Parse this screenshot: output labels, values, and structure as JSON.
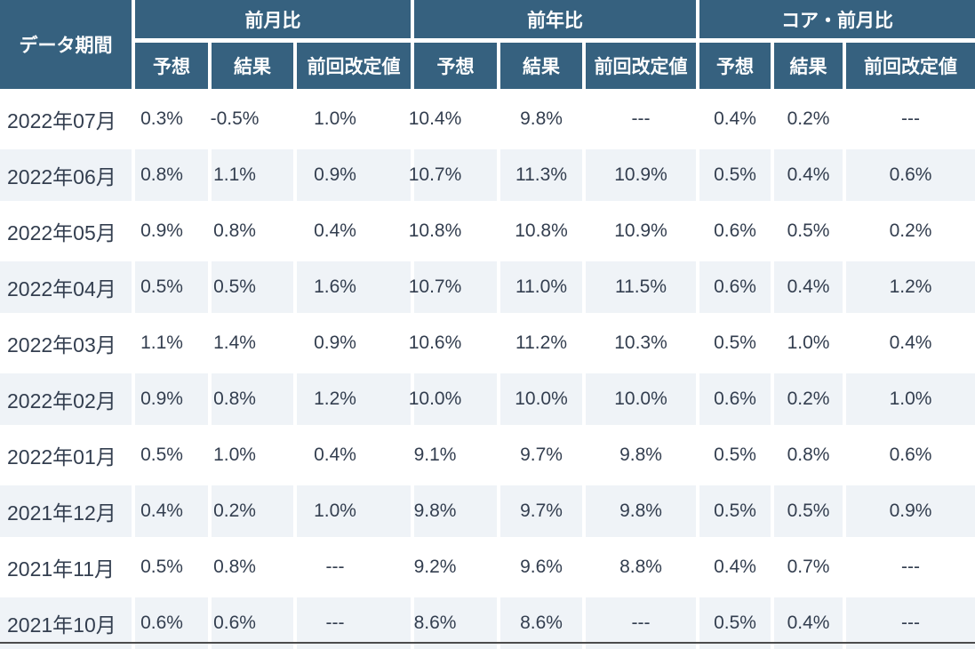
{
  "chart_data": {
    "type": "table",
    "corner_header": "データ期間",
    "column_groups": [
      {
        "label": "前月比",
        "columns": [
          "予想",
          "結果",
          "前回改定値"
        ]
      },
      {
        "label": "前年比",
        "columns": [
          "予想",
          "結果",
          "前回改定値"
        ]
      },
      {
        "label": "コア・前月比",
        "columns": [
          "予想",
          "結果",
          "前回改定値"
        ]
      }
    ],
    "no_data_placeholder": "---",
    "rows": [
      {
        "period": "2022年07月",
        "values": [
          "0.3%",
          "-0.5%",
          "1.0%",
          "10.4%",
          "9.8%",
          "---",
          "0.4%",
          "0.2%",
          "---"
        ]
      },
      {
        "period": "2022年06月",
        "values": [
          "0.8%",
          "1.1%",
          "0.9%",
          "10.7%",
          "11.3%",
          "10.9%",
          "0.5%",
          "0.4%",
          "0.6%"
        ]
      },
      {
        "period": "2022年05月",
        "values": [
          "0.9%",
          "0.8%",
          "0.4%",
          "10.8%",
          "10.8%",
          "10.9%",
          "0.6%",
          "0.5%",
          "0.2%"
        ]
      },
      {
        "period": "2022年04月",
        "values": [
          "0.5%",
          "0.5%",
          "1.6%",
          "10.7%",
          "11.0%",
          "11.5%",
          "0.6%",
          "0.4%",
          "1.2%"
        ]
      },
      {
        "period": "2022年03月",
        "values": [
          "1.1%",
          "1.4%",
          "0.9%",
          "10.6%",
          "11.2%",
          "10.3%",
          "0.5%",
          "1.0%",
          "0.4%"
        ]
      },
      {
        "period": "2022年02月",
        "values": [
          "0.9%",
          "0.8%",
          "1.2%",
          "10.0%",
          "10.0%",
          "10.0%",
          "0.6%",
          "0.2%",
          "1.0%"
        ]
      },
      {
        "period": "2022年01月",
        "values": [
          "0.5%",
          "1.0%",
          "0.4%",
          "9.1%",
          "9.7%",
          "9.8%",
          "0.5%",
          "0.8%",
          "0.6%"
        ]
      },
      {
        "period": "2021年12月",
        "values": [
          "0.4%",
          "0.2%",
          "1.0%",
          "9.8%",
          "9.7%",
          "9.8%",
          "0.5%",
          "0.5%",
          "0.9%"
        ]
      },
      {
        "period": "2021年11月",
        "values": [
          "0.5%",
          "0.8%",
          "---",
          "9.2%",
          "9.6%",
          "8.8%",
          "0.4%",
          "0.7%",
          "---"
        ]
      },
      {
        "period": "2021年10月",
        "values": [
          "0.6%",
          "0.6%",
          "---",
          "8.6%",
          "8.6%",
          "---",
          "0.5%",
          "0.4%",
          "---"
        ]
      }
    ]
  },
  "colors": {
    "header_background": "#36617f",
    "header_text": "#ffffff",
    "stripe_background": "#eff3f7",
    "row_background": "#ffffff",
    "body_text": "#333e4f",
    "bottom_rule": "#4c4c4c"
  }
}
